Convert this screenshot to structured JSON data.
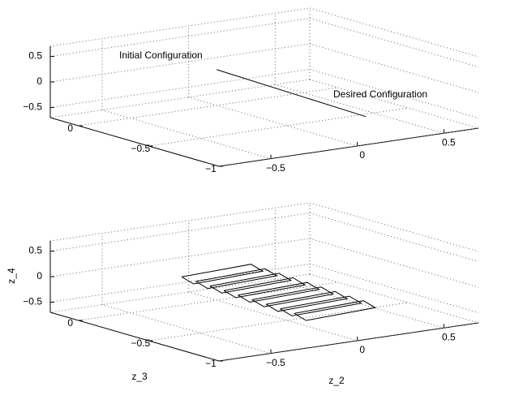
{
  "chart_data": [
    {
      "type": "line3d",
      "annotations": [
        "Initial Configuration",
        "Desired Configuration"
      ],
      "series": [
        {
          "color": "#000000",
          "x": [
            0,
            0.05
          ],
          "y": [
            0,
            -1
          ],
          "z": [
            0,
            -0.15
          ]
        }
      ],
      "xlim": [
        -0.8,
        0.7
      ],
      "ylim": [
        -1,
        0.2
      ],
      "zlim": [
        -0.7,
        0.7
      ],
      "xticks": [
        {
          "value": -0.5,
          "label": "−0.5"
        },
        0,
        0.5
      ],
      "yticks": [
        {
          "value": -1,
          "label": "−1"
        },
        {
          "value": -0.5,
          "label": "−0.5"
        },
        0
      ],
      "zticks": [
        {
          "value": -0.5,
          "label": "−0.5"
        },
        0,
        0.5
      ],
      "grid": true
    },
    {
      "type": "line3d",
      "xlabel": "z_2",
      "ylabel": "z_3",
      "zlabel": "z_4",
      "series": [
        {
          "color": "#000000",
          "x": [
            -0.3,
            0.1,
            0.12,
            -0.28,
            -0.3,
            null,
            -0.3,
            0.1,
            0.12,
            -0.28,
            -0.3,
            null,
            -0.3,
            0.1,
            0.12,
            -0.28,
            -0.3,
            null,
            -0.3,
            0.1,
            0.12,
            -0.28,
            -0.3,
            null,
            -0.3,
            0.1,
            0.12,
            -0.28,
            -0.3,
            null,
            -0.3,
            0.1,
            0.12,
            -0.28,
            -0.3,
            null,
            -0.3,
            0.1,
            0.12,
            -0.28,
            -0.3,
            null,
            -0.3,
            0.1,
            0.12,
            -0.28,
            -0.3,
            null,
            -0.3,
            0.1,
            0.12,
            -0.28,
            -0.3
          ],
          "y": [
            -0.12,
            -0.12,
            -0.18,
            -0.18,
            -0.12,
            null,
            -0.22,
            -0.22,
            -0.28,
            -0.28,
            -0.22,
            null,
            -0.32,
            -0.32,
            -0.38,
            -0.38,
            -0.32,
            null,
            -0.42,
            -0.42,
            -0.48,
            -0.48,
            -0.42,
            null,
            -0.52,
            -0.52,
            -0.58,
            -0.58,
            -0.52,
            null,
            -0.62,
            -0.62,
            -0.68,
            -0.68,
            -0.62,
            null,
            -0.72,
            -0.72,
            -0.78,
            -0.78,
            -0.72,
            null,
            -0.82,
            -0.82,
            -0.88,
            -0.88,
            -0.82,
            null,
            -0.92,
            -0.92,
            -0.98,
            -0.98,
            -0.92
          ],
          "z": [
            0,
            0.05,
            -0.05,
            -0.1,
            0,
            null,
            -0.01,
            0.04,
            -0.06,
            -0.11,
            -0.01,
            null,
            -0.02,
            0.03,
            -0.07,
            -0.12,
            -0.02,
            null,
            -0.03,
            0.02,
            -0.08,
            -0.13,
            -0.03,
            null,
            -0.04,
            0.01,
            -0.09,
            -0.14,
            -0.04,
            null,
            -0.05,
            0,
            -0.1,
            -0.15,
            -0.05,
            null,
            -0.06,
            -0.01,
            -0.11,
            -0.16,
            -0.06,
            null,
            -0.07,
            -0.02,
            -0.12,
            -0.17,
            -0.07,
            null,
            -0.08,
            -0.03,
            -0.13,
            -0.18,
            -0.08
          ]
        }
      ],
      "xlim": [
        -0.8,
        0.7
      ],
      "ylim": [
        -1,
        0.2
      ],
      "zlim": [
        -0.7,
        0.7
      ],
      "xticks": [
        {
          "value": -0.5,
          "label": "−0.5"
        },
        0,
        0.5
      ],
      "yticks": [
        {
          "value": -1,
          "label": "−1"
        },
        {
          "value": -0.5,
          "label": "−0.5"
        },
        0
      ],
      "zticks": [
        {
          "value": -0.5,
          "label": "−0.5"
        },
        0,
        0.5
      ],
      "grid": true
    }
  ]
}
